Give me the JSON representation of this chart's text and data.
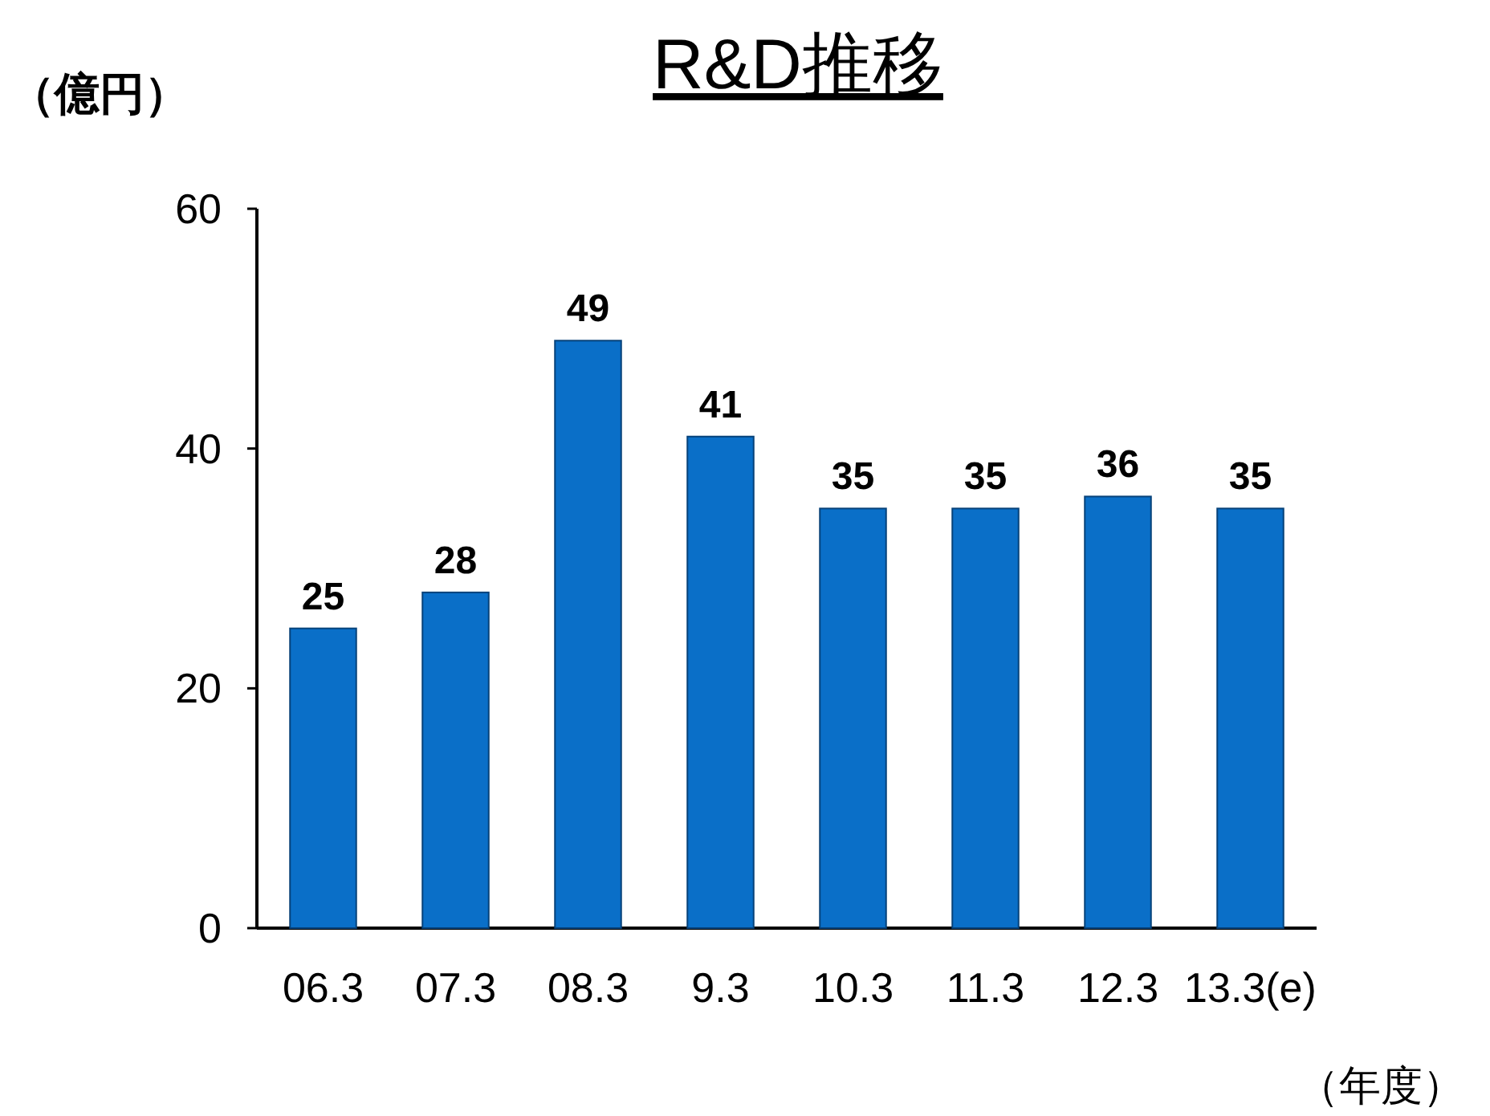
{
  "chart_data": {
    "type": "bar",
    "title": "R&D推移",
    "ylabel": "（億円）",
    "xlabel": "（年度）",
    "categories": [
      "06.3",
      "07.3",
      "08.3",
      "9.3",
      "10.3",
      "11.3",
      "12.3",
      "13.3(e)"
    ],
    "values": [
      25,
      28,
      49,
      41,
      35,
      35,
      36,
      35
    ],
    "color": "#0a6fc8",
    "ylim": [
      0,
      60
    ],
    "yticks": [
      0,
      20,
      40,
      60
    ],
    "data_labels": true,
    "grid": false
  }
}
